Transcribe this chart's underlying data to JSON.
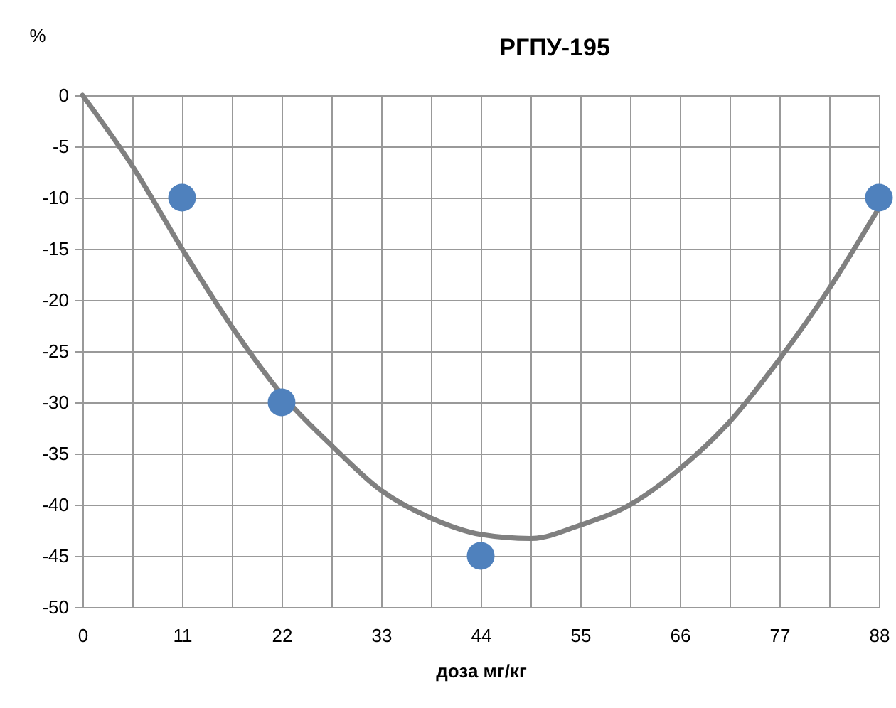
{
  "chart_data": {
    "type": "scatter",
    "title": "РГПУ-195",
    "xlabel": "доза мг/кг",
    "ylabel": "%",
    "xlim": [
      0,
      88
    ],
    "ylim": [
      -50,
      0
    ],
    "xticks": [
      0,
      {
        "value": 5.5,
        "label": null
      },
      11,
      {
        "value": 16.5,
        "label": null
      },
      22,
      {
        "value": 27.5,
        "label": null
      },
      33,
      {
        "value": 38.5,
        "label": null
      },
      44,
      {
        "value": 49.5,
        "label": null
      },
      55,
      {
        "value": 60.5,
        "label": null
      },
      66,
      {
        "value": 71.5,
        "label": null
      },
      77,
      {
        "value": 82.5,
        "label": null
      },
      88
    ],
    "yticks": [
      -50,
      -45,
      -40,
      -35,
      -30,
      -25,
      -20,
      -15,
      -10,
      -5,
      0
    ],
    "grid": true,
    "series": [
      {
        "type": "line",
        "color": "#808080",
        "line_style": "solid",
        "marker": "none",
        "x": [
          0,
          5.5,
          11,
          16.5,
          22,
          27.5,
          33,
          38.5,
          44,
          49.5,
          55,
          60.5,
          66,
          71.5,
          77,
          82.5,
          88
        ],
        "values": [
          0,
          -6.9,
          -15,
          -22.6,
          -29.2,
          -34.2,
          -38.6,
          -41.3,
          -42.9,
          -43.3,
          -42,
          -40,
          -36.5,
          -31.9,
          -25.8,
          -18.9,
          -11
        ]
      },
      {
        "type": "scatter",
        "color": "#4f81bd",
        "marker": "circle",
        "x": [
          11,
          22,
          44,
          88
        ],
        "values": [
          -10,
          -30,
          -45,
          -10
        ]
      }
    ]
  }
}
